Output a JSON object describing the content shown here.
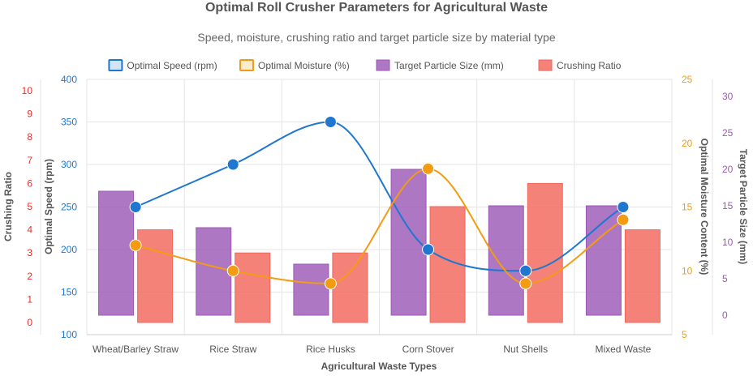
{
  "chart_data": {
    "type": "bar",
    "title": "Optimal Roll Crusher Parameters for Agricultural Waste",
    "subtitle": "Speed, moisture, crushing ratio and target particle size by material type",
    "xlabel": "Agricultural Waste Types",
    "categories": [
      "Wheat/Barley Straw",
      "Rice Straw",
      "Rice Husks",
      "Corn Stover",
      "Nut Shells",
      "Mixed Waste"
    ],
    "series": [
      {
        "name": "Optimal Speed (rpm)",
        "kind": "line",
        "axis": "speed",
        "color": "#1f77d0",
        "values": [
          250,
          300,
          350,
          200,
          175,
          250
        ]
      },
      {
        "name": "Optimal Moisture (%)",
        "kind": "line",
        "axis": "moisture",
        "color": "#f39c12",
        "values": [
          12,
          10,
          9,
          18,
          9,
          14
        ]
      },
      {
        "name": "Target Particle Size (mm)",
        "kind": "bar",
        "axis": "particle",
        "color": "#9b59b6",
        "values": [
          17,
          12,
          7,
          20,
          15,
          15
        ]
      },
      {
        "name": "Crushing Ratio",
        "kind": "bar",
        "axis": "ratio",
        "color": "#f1675c",
        "values": [
          4,
          3,
          3,
          5,
          6,
          4
        ]
      }
    ],
    "axes": {
      "ratio": {
        "title": "Crushing Ratio",
        "position": "left-outer",
        "color": "#e0312d",
        "min": 0,
        "max": 10,
        "ticks": [
          "0",
          "1",
          "2",
          "3",
          "4",
          "5",
          "6",
          "7",
          "8",
          "9",
          "10"
        ]
      },
      "speed": {
        "title": "Optimal Speed (rpm)",
        "position": "left-inner",
        "color": "#1f77d0",
        "min": 100,
        "max": 400,
        "ticks": [
          "100",
          "150",
          "200",
          "250",
          "300",
          "350",
          "400"
        ]
      },
      "moisture": {
        "title": "Optimal Moisture Content (%)",
        "position": "right-inner",
        "color": "#f39c12",
        "min": 5,
        "max": 25,
        "ticks": [
          "5",
          "10",
          "15",
          "20",
          "25"
        ]
      },
      "particle": {
        "title": "Target Particle Size (mm)",
        "position": "right-outer",
        "color": "#9b59b6",
        "min": 0,
        "max": 30,
        "ticks": [
          "0",
          "5",
          "10",
          "15",
          "20",
          "25",
          "30"
        ]
      }
    },
    "legend_position": "top",
    "grid": true
  }
}
